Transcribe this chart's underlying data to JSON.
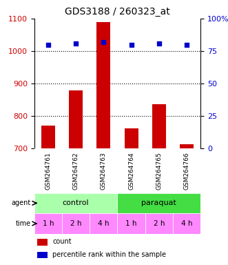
{
  "title": "GDS3188 / 260323_at",
  "samples": [
    "GSM264761",
    "GSM264762",
    "GSM264763",
    "GSM264764",
    "GSM264765",
    "GSM264766"
  ],
  "counts": [
    770,
    878,
    1090,
    762,
    836,
    713
  ],
  "percentiles": [
    80,
    81,
    82,
    80,
    81,
    80
  ],
  "ylim_left": [
    700,
    1100
  ],
  "ylim_right": [
    0,
    100
  ],
  "yticks_left": [
    700,
    800,
    900,
    1000,
    1100
  ],
  "yticks_right": [
    0,
    25,
    50,
    75,
    100
  ],
  "ytick_labels_right": [
    "0",
    "25",
    "50",
    "75",
    "100%"
  ],
  "bar_color": "#cc0000",
  "dot_color": "#0000cc",
  "agent_groups": [
    {
      "label": "control",
      "span": [
        0,
        3
      ],
      "color": "#aaffaa"
    },
    {
      "label": "paraquat",
      "span": [
        3,
        6
      ],
      "color": "#44dd44"
    }
  ],
  "time_labels": [
    "1 h",
    "2 h",
    "4 h",
    "1 h",
    "2 h",
    "4 h"
  ],
  "time_color": "#ff88ff",
  "legend_items": [
    {
      "color": "#cc0000",
      "label": "count"
    },
    {
      "color": "#0000cc",
      "label": "percentile rank within the sample"
    }
  ],
  "grid_color": "black",
  "tick_label_color_left": "#cc0000",
  "tick_label_color_right": "#0000cc",
  "bg_color": "#ffffff",
  "sample_bg_color": "#cccccc"
}
